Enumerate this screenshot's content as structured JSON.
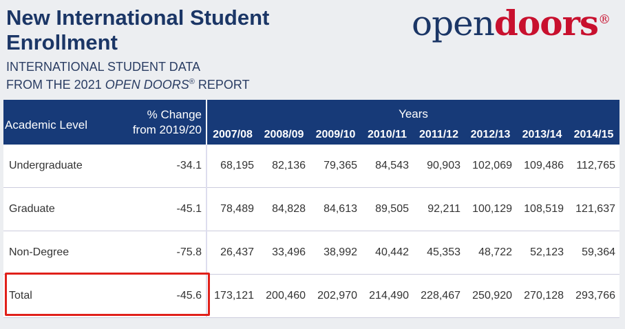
{
  "header": {
    "title": "New International Student Enrollment",
    "subtitle_line1": "INTERNATIONAL STUDENT DATA",
    "subtitle_line2": {
      "prefix": "FROM THE 2021",
      "italic": "OPEN DOORS",
      "mark": "®",
      "suffix": "REPORT"
    }
  },
  "logo": {
    "part1": "open",
    "part2": "doors",
    "mark": "®"
  },
  "table": {
    "level_header": "Academic Level",
    "change_header": [
      "% Change",
      "from 2019/20"
    ],
    "years_header": "Years",
    "years": [
      "2007/08",
      "2008/09",
      "2009/10",
      "2010/11",
      "2011/12",
      "2012/13",
      "2013/14",
      "2014/15"
    ],
    "rows": [
      [
        "Undergraduate",
        "-34.1",
        "68,195",
        "82,136",
        "79,365",
        "84,543",
        "90,903",
        "102,069",
        "109,486",
        "112,765"
      ],
      [
        "Graduate",
        "-45.1",
        "78,489",
        "84,828",
        "84,613",
        "89,505",
        "92,211",
        "100,129",
        "108,519",
        "121,637"
      ],
      [
        "Non-Degree",
        "-75.8",
        "26,437",
        "33,496",
        "38,992",
        "40,442",
        "45,353",
        "48,722",
        "52,123",
        "59,364"
      ],
      [
        "Total",
        "-45.6",
        "173,121",
        "200,460",
        "202,970",
        "214,490",
        "228,467",
        "250,920",
        "270,128",
        "293,766"
      ]
    ]
  }
}
